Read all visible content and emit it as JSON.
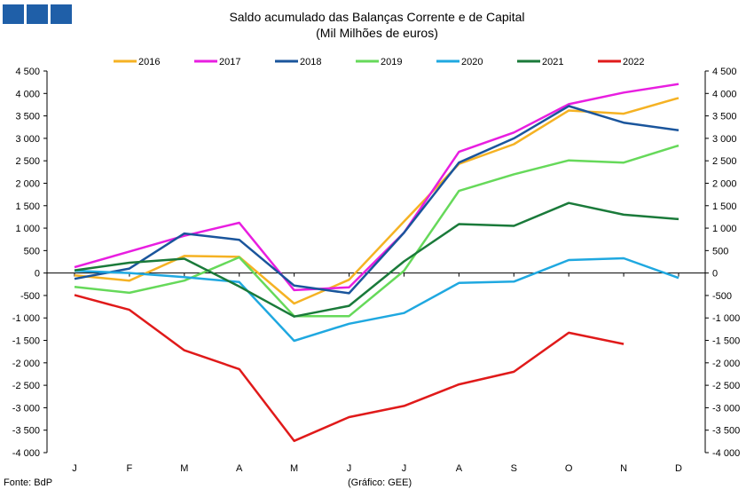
{
  "header": {
    "logo_icon": "gee-logo-squares",
    "title": "Saldo acumulado das Balanças Corrente e de Capital",
    "subtitle": "(Mil Milhões de euros)"
  },
  "footer": {
    "source": "Fonte: BdP",
    "credit": "(Gráfico: GEE)"
  },
  "chart_data": {
    "type": "line",
    "categories": [
      "J",
      "F",
      "M",
      "A",
      "M",
      "J",
      "J",
      "A",
      "S",
      "O",
      "N",
      "D"
    ],
    "ylim": [
      -4000,
      4500
    ],
    "yticks": [
      -4000,
      -3500,
      -3000,
      -2500,
      -2000,
      -1500,
      -1000,
      -500,
      0,
      500,
      1000,
      1500,
      2000,
      2500,
      3000,
      3500,
      4000,
      4500
    ],
    "ytick_labels": [
      "-4 000",
      "-3 500",
      "-3 000",
      "-2 500",
      "-2 000",
      "-1 500",
      "-1 000",
      "-500",
      "0",
      "500",
      "1 000",
      "1 500",
      "2 000",
      "2 500",
      "3 000",
      "3 500",
      "4 000",
      "4 500"
    ],
    "dual_y_axis": true,
    "grid": false,
    "legend_position": "top",
    "series": [
      {
        "name": "2016",
        "color": "#f5b223",
        "values": [
          -50,
          -170,
          380,
          360,
          -680,
          -150,
          1150,
          2430,
          2870,
          3620,
          3550,
          3900
        ]
      },
      {
        "name": "2017",
        "color": "#e81ee0",
        "values": [
          130,
          480,
          830,
          1120,
          -380,
          -320,
          900,
          2700,
          3130,
          3760,
          4020,
          4210
        ]
      },
      {
        "name": "2018",
        "color": "#1a559c",
        "values": [
          -130,
          100,
          880,
          740,
          -280,
          -450,
          900,
          2460,
          3000,
          3720,
          3350,
          3180
        ]
      },
      {
        "name": "2019",
        "color": "#66d95a",
        "values": [
          -310,
          -440,
          -170,
          350,
          -960,
          -960,
          50,
          1830,
          2200,
          2510,
          2460,
          2840
        ]
      },
      {
        "name": "2020",
        "color": "#1fa8e0",
        "values": [
          50,
          0,
          -90,
          -200,
          -1510,
          -1130,
          -890,
          -220,
          -190,
          290,
          330,
          -110
        ]
      },
      {
        "name": "2021",
        "color": "#1a7a3a",
        "values": [
          60,
          230,
          320,
          -300,
          -970,
          -730,
          260,
          1090,
          1050,
          1560,
          1300,
          1200
        ]
      },
      {
        "name": "2022",
        "color": "#e01a1a",
        "values": [
          -490,
          -820,
          -1720,
          -2140,
          -3740,
          -3210,
          -2960,
          -2480,
          -2200,
          -1330,
          -1580,
          null
        ]
      }
    ]
  }
}
